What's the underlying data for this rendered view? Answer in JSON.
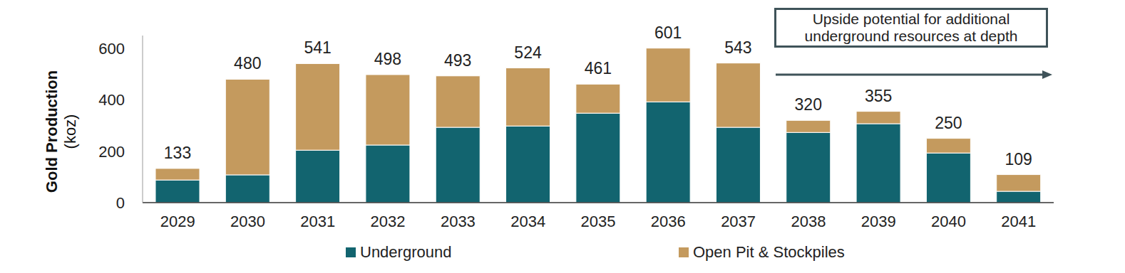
{
  "chart_data": {
    "type": "bar",
    "stacked": true,
    "ylabel": [
      "Gold Production",
      "(koz)"
    ],
    "categories": [
      "2029",
      "2030",
      "2031",
      "2032",
      "2033",
      "2034",
      "2035",
      "2036",
      "2037",
      "2038",
      "2039",
      "2040",
      "2041"
    ],
    "series": [
      {
        "name": "Underground",
        "color": "#12646f",
        "values": [
          88,
          108,
          204,
          224,
          293,
          298,
          348,
          392,
          293,
          273,
          307,
          193,
          44
        ]
      },
      {
        "name": "Open Pit & Stockpiles",
        "color": "#c49a5e",
        "values": [
          45,
          372,
          337,
          274,
          200,
          226,
          113,
          209,
          250,
          47,
          48,
          57,
          65
        ]
      }
    ],
    "totals": [
      133,
      480,
      541,
      498,
      493,
      524,
      461,
      601,
      543,
      320,
      355,
      250,
      109
    ],
    "ylim": [
      0,
      650
    ],
    "yticks": [
      0,
      200,
      400,
      600
    ],
    "grid": false,
    "legend": "bottom",
    "annotation": [
      "Upside potential for additional",
      "underground resources at depth"
    ]
  }
}
